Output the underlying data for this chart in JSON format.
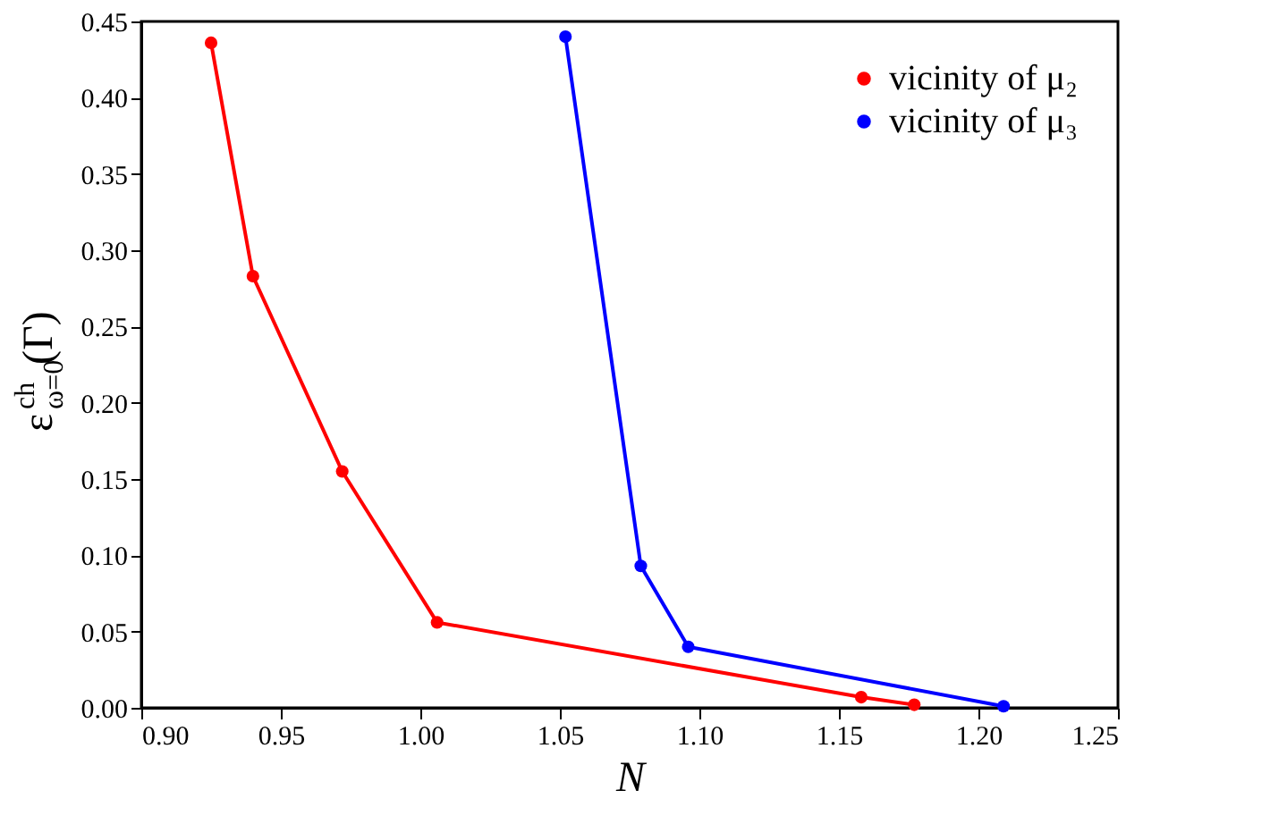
{
  "chart_data": {
    "type": "line",
    "xlabel": "N",
    "ylabel": "ε$^{ch}$$_{ω=0}$(Γ)",
    "xlim": [
      0.9,
      1.25
    ],
    "xticks": [
      {
        "value": 0.9,
        "label": "0.90"
      },
      {
        "value": 0.95,
        "label": "0.95"
      },
      {
        "value": 1.0,
        "label": "1.00"
      },
      {
        "value": 1.05,
        "label": "1.05"
      },
      {
        "value": 1.1,
        "label": "1.10"
      },
      {
        "value": 1.15,
        "label": "1.15"
      },
      {
        "value": 1.2,
        "label": "1.20"
      },
      {
        "value": 1.25,
        "label": "1.25"
      }
    ],
    "ylim": [
      0,
      0.45
    ],
    "yticks": [
      {
        "value": 0,
        "label": "0.00"
      },
      0.05,
      {
        "value": 0.1,
        "label": "0.10"
      },
      0.15,
      {
        "value": 0.2,
        "label": "0.20"
      },
      0.25,
      {
        "value": 0.3,
        "label": "0.30"
      },
      0.35,
      {
        "value": 0.4,
        "label": "0.40"
      },
      0.45
    ],
    "grid": false,
    "legend": "top right",
    "marker": "circle",
    "line_style": "solid",
    "series": [
      {
        "name": "vicinity of μ₂",
        "color": "#ff0000",
        "x": [
          0.925,
          0.94,
          0.972,
          1.006,
          1.158,
          1.177
        ],
        "values": [
          0.436,
          0.283,
          0.155,
          0.056,
          0.007,
          0.002
        ]
      },
      {
        "name": "vicinity of μ₃",
        "color": "#0000ff",
        "x": [
          1.052,
          1.079,
          1.096,
          1.209
        ],
        "values": [
          0.44,
          0.093,
          0.04,
          0.001
        ]
      }
    ]
  }
}
